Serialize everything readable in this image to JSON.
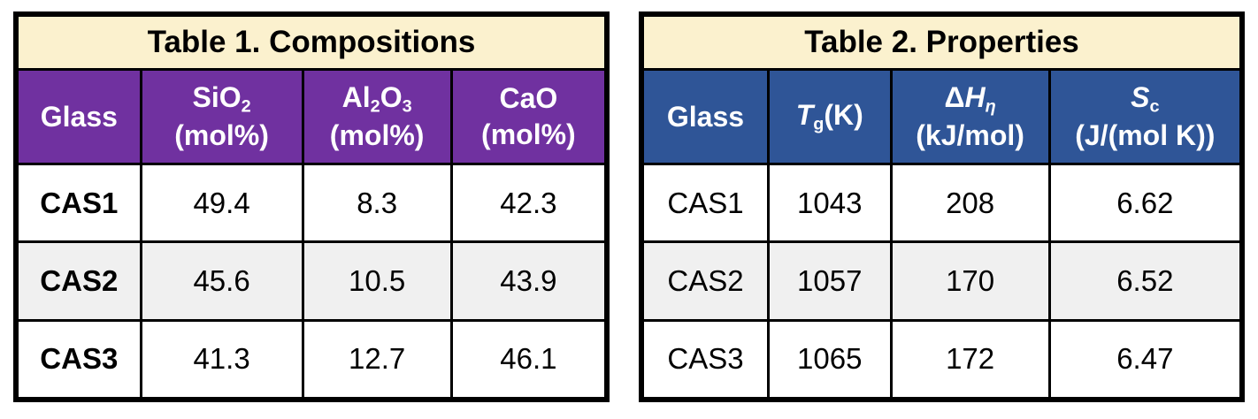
{
  "colors": {
    "page_bg": "#FFFFFF",
    "title_bg": "#FBF1CE",
    "table1_header_bg": "#7031A0",
    "table2_header_bg": "#2F5597",
    "stripe": "#F0F0F0",
    "border": "#000000",
    "header_text": "#FFFFFF",
    "body_text": "#000000"
  },
  "table1": {
    "title": "Table 1. Compositions",
    "columns": [
      {
        "parts": [
          {
            "text": "Glass"
          }
        ],
        "unit": ""
      },
      {
        "parts": [
          {
            "text": "SiO"
          },
          {
            "text": "2",
            "sub": true
          }
        ],
        "unit": "(mol%)"
      },
      {
        "parts": [
          {
            "text": "Al"
          },
          {
            "text": "2",
            "sub": true
          },
          {
            "text": "O"
          },
          {
            "text": "3",
            "sub": true
          }
        ],
        "unit": "(mol%)"
      },
      {
        "parts": [
          {
            "text": "CaO"
          }
        ],
        "unit": "(mol%)"
      }
    ],
    "rows": [
      {
        "glass": "CAS1",
        "values": [
          "49.4",
          "8.3",
          "42.3"
        ]
      },
      {
        "glass": "CAS2",
        "values": [
          "45.6",
          "10.5",
          "43.9"
        ]
      },
      {
        "glass": "CAS3",
        "values": [
          "41.3",
          "12.7",
          "46.1"
        ]
      }
    ]
  },
  "table2": {
    "title": "Table 2. Properties",
    "columns": [
      {
        "parts": [
          {
            "text": "Glass"
          }
        ],
        "unit": ""
      },
      {
        "parts": [
          {
            "text": "T",
            "italic": true
          },
          {
            "text": "g",
            "sub": true
          },
          {
            "text": "(K)"
          }
        ],
        "unit": ""
      },
      {
        "parts": [
          {
            "text": "Δ"
          },
          {
            "text": "H",
            "italic": true
          },
          {
            "text": "η",
            "sub": true,
            "italic": true
          }
        ],
        "unit": "(kJ/mol)"
      },
      {
        "parts": [
          {
            "text": "S",
            "italic": true
          },
          {
            "text": "c",
            "sub": true
          }
        ],
        "unit": "(J/(mol K))"
      }
    ],
    "rows": [
      {
        "glass": "CAS1",
        "values": [
          "1043",
          "208",
          "6.62"
        ]
      },
      {
        "glass": "CAS2",
        "values": [
          "1057",
          "170",
          "6.52"
        ]
      },
      {
        "glass": "CAS3",
        "values": [
          "1065",
          "172",
          "6.47"
        ]
      }
    ]
  }
}
